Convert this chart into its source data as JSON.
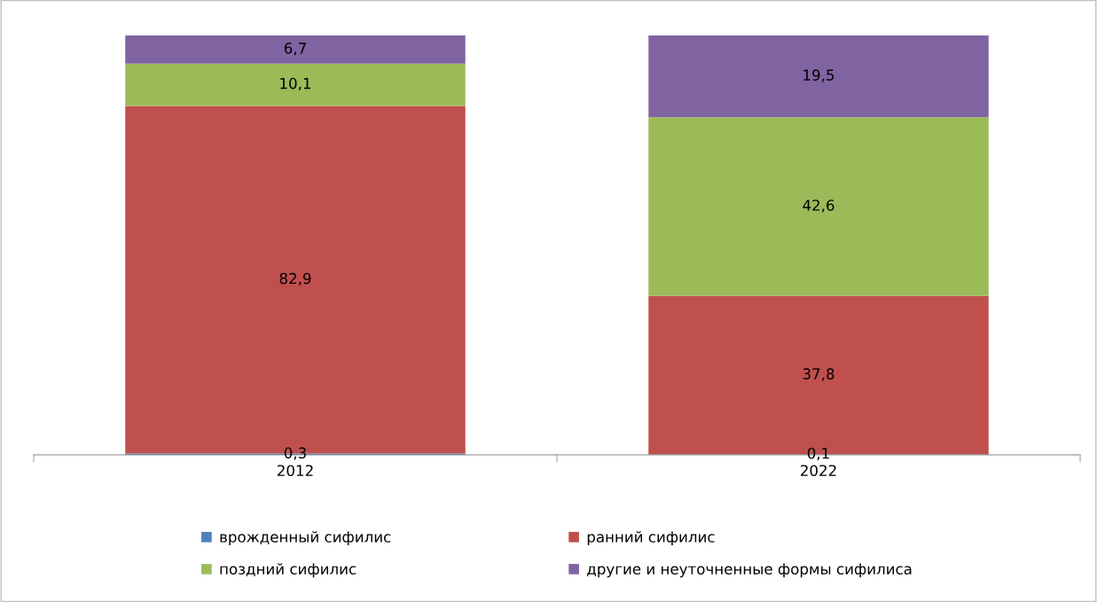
{
  "chart_data": {
    "type": "bar",
    "stacked": true,
    "categories": [
      "2012",
      "2022"
    ],
    "series": [
      {
        "name": "врожденный сифилис",
        "color": "#4f81bd",
        "values": [
          0.3,
          0.1
        ],
        "value_labels": [
          "0,3",
          "0,1"
        ]
      },
      {
        "name": "ранний сифилис",
        "color": "#c0504d",
        "values": [
          82.9,
          37.8
        ],
        "value_labels": [
          "82,9",
          "37,8"
        ]
      },
      {
        "name": "поздний сифилис",
        "color": "#9bbb59",
        "values": [
          10.1,
          42.6
        ],
        "value_labels": [
          "10,1",
          "42,6"
        ]
      },
      {
        "name": "другие и неуточненные формы сифилиса",
        "color": "#8064a2",
        "values": [
          6.7,
          19.5
        ],
        "value_labels": [
          "6,7",
          "19,5"
        ]
      }
    ],
    "legend": "bottom",
    "grid": false,
    "tick_labels": "x"
  }
}
